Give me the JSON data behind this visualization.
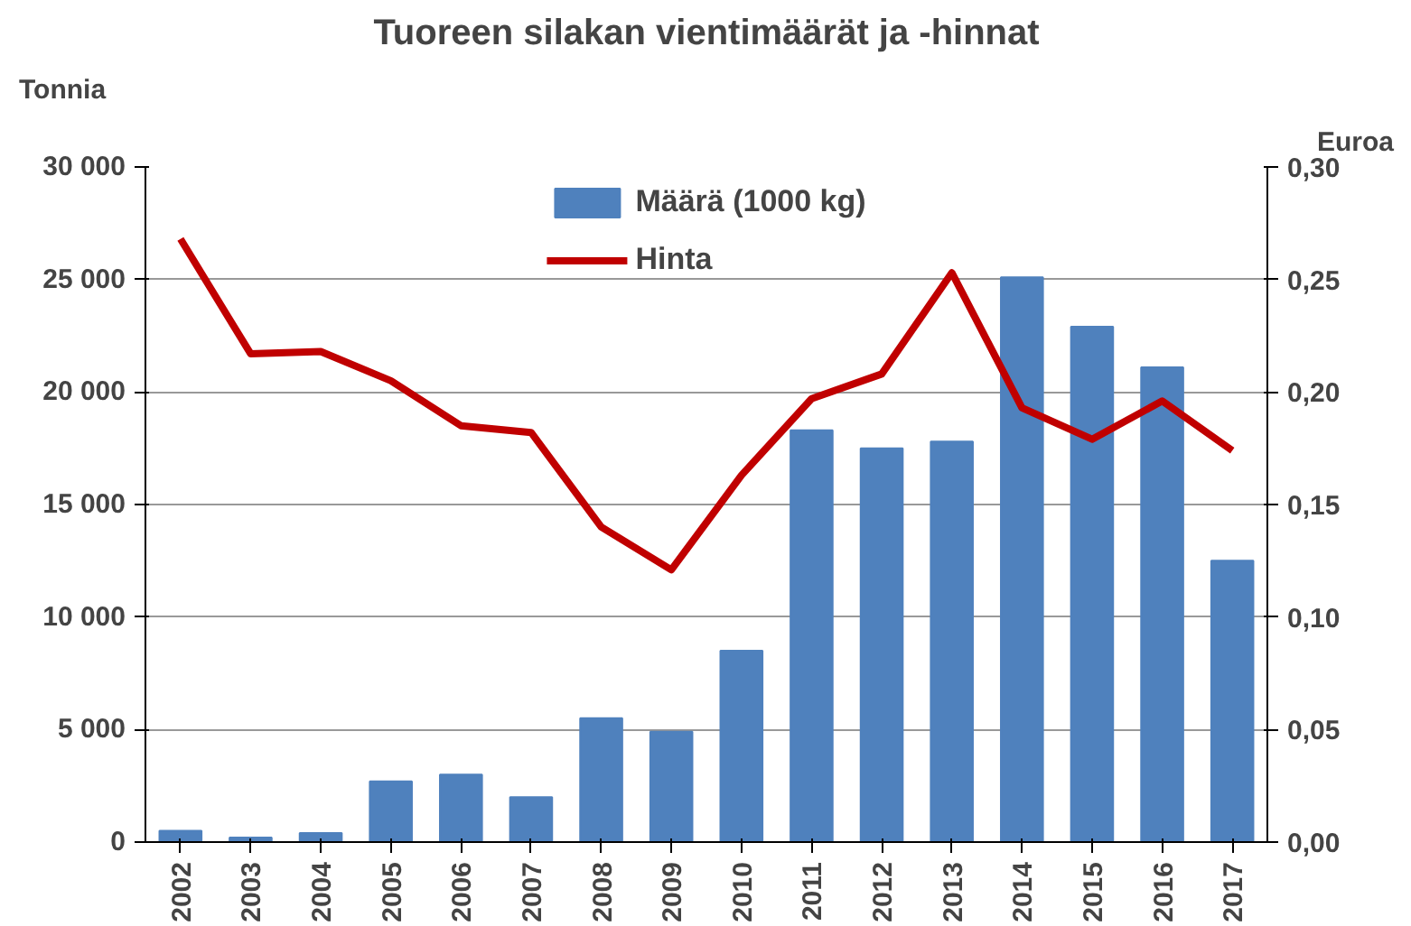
{
  "chart_data": {
    "type": "bar",
    "title": "Tuoreen silakan vientimäärät ja -hinnat",
    "ylabel": "Tonnia",
    "y2label": "Euroa",
    "categories": [
      "2002",
      "2003",
      "2004",
      "2005",
      "2006",
      "2007",
      "2008",
      "2009",
      "2010",
      "2011",
      "2012",
      "2013",
      "2014",
      "2015",
      "2016",
      "2017"
    ],
    "series": [
      {
        "name": "Määrä (1000 kg)",
        "color": "#4f81bd",
        "values": [
          500,
          200,
          400,
          2700,
          3000,
          2000,
          5500,
          4900,
          8500,
          18300,
          17500,
          17800,
          25100,
          22900,
          21100,
          12500
        ]
      },
      {
        "name": "Hinta",
        "type": "line",
        "axis": "y2",
        "color": "#c00000",
        "values": [
          0.268,
          0.217,
          0.218,
          0.205,
          0.185,
          0.182,
          0.14,
          0.121,
          0.163,
          0.197,
          0.208,
          0.253,
          0.193,
          0.179,
          0.196,
          0.174
        ]
      }
    ],
    "ylim": [
      0,
      30000
    ],
    "yticks": [
      {
        "value": 0,
        "label": "0"
      },
      {
        "value": 5000,
        "label": "5 000"
      },
      {
        "value": 10000,
        "label": "10 000"
      },
      {
        "value": 15000,
        "label": "15 000"
      },
      {
        "value": 20000,
        "label": "20 000"
      },
      {
        "value": 25000,
        "label": "25 000"
      },
      {
        "value": 30000,
        "label": "30 000"
      }
    ],
    "y2lim": [
      0,
      0.3
    ],
    "y2ticks": [
      {
        "value": 0,
        "label": "0,00"
      },
      {
        "value": 0.05,
        "label": "0,05"
      },
      {
        "value": 0.1,
        "label": "0,10"
      },
      {
        "value": 0.15,
        "label": "0,15"
      },
      {
        "value": 0.2,
        "label": "0,20"
      },
      {
        "value": 0.25,
        "label": "0,25"
      },
      {
        "value": 0.3,
        "label": "0,30"
      }
    ],
    "grid": "y",
    "legend": "top",
    "marker": "none",
    "line_style": "solid"
  }
}
